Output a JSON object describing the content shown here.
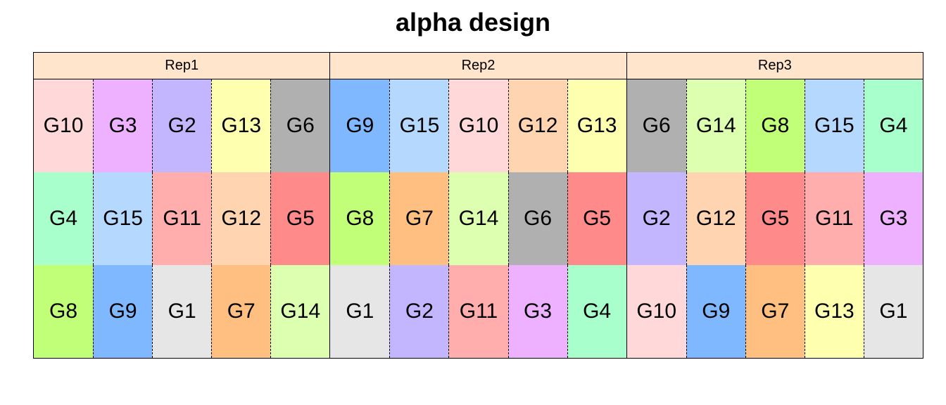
{
  "title": "alpha design",
  "colors": {
    "G1": "#e6e6e6",
    "G2": "#c4b5ff",
    "G3": "#eeb1ff",
    "G4": "#a8ffcc",
    "G5": "#ff8a8a",
    "G6": "#b0b0b0",
    "G7": "#ffbf80",
    "G8": "#c2ff78",
    "G9": "#7fb8ff",
    "G10": "#ffd9d9",
    "G11": "#ffadad",
    "G12": "#ffd4b0",
    "G13": "#ffffb0",
    "G14": "#dcffb0",
    "G15": "#b5d8ff",
    "strip": "#ffe5cc"
  },
  "reps": [
    {
      "label": "Rep1",
      "rows": [
        [
          "G10",
          "G3",
          "G2",
          "G13",
          "G6"
        ],
        [
          "G4",
          "G15",
          "G11",
          "G12",
          "G5"
        ],
        [
          "G8",
          "G9",
          "G1",
          "G7",
          "G14"
        ]
      ]
    },
    {
      "label": "Rep2",
      "rows": [
        [
          "G9",
          "G15",
          "G10",
          "G12",
          "G13"
        ],
        [
          "G8",
          "G7",
          "G14",
          "G6",
          "G5"
        ],
        [
          "G1",
          "G2",
          "G11",
          "G3",
          "G4"
        ]
      ]
    },
    {
      "label": "Rep3",
      "rows": [
        [
          "G6",
          "G14",
          "G8",
          "G15",
          "G4"
        ],
        [
          "G2",
          "G12",
          "G5",
          "G11",
          "G3"
        ],
        [
          "G10",
          "G9",
          "G7",
          "G13",
          "G1"
        ]
      ]
    }
  ]
}
